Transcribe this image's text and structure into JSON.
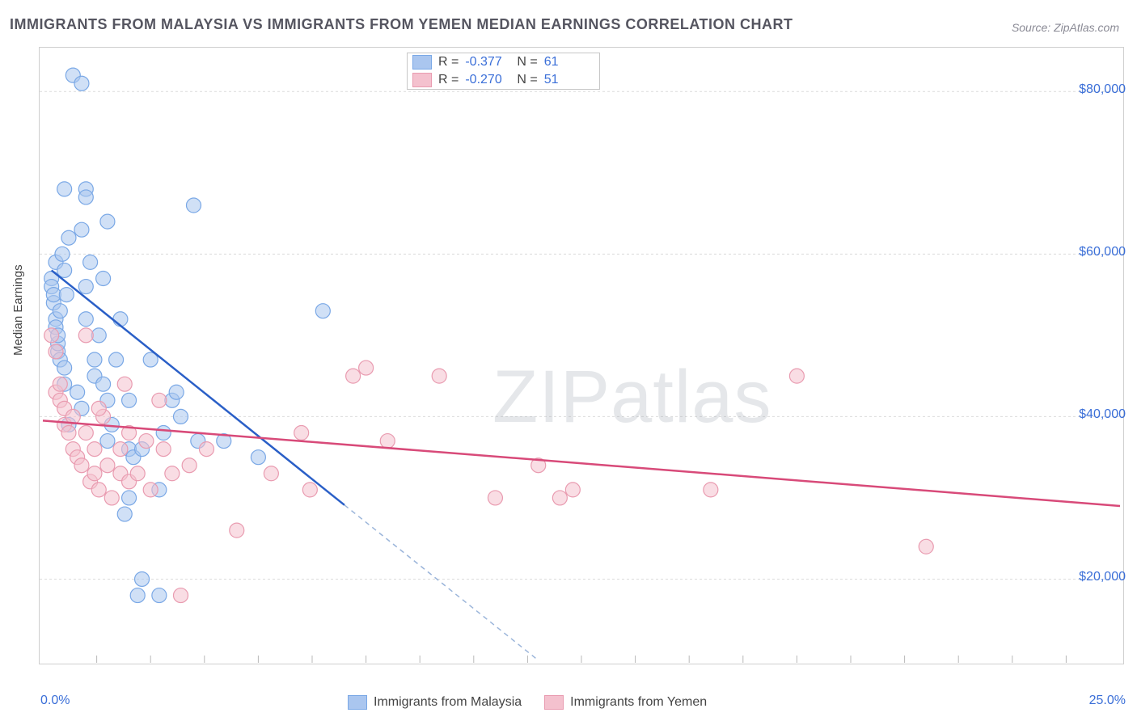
{
  "title": "IMMIGRANTS FROM MALAYSIA VS IMMIGRANTS FROM YEMEN MEDIAN EARNINGS CORRELATION CHART",
  "source": "Source: ZipAtlas.com",
  "ylabel": "Median Earnings",
  "watermark": "ZIPatlas",
  "chart": {
    "type": "scatter-with-regression",
    "background_color": "#ffffff",
    "border_color": "#cfcfcf",
    "grid_color": "#dcdcdc",
    "axis_text_color": "#3b6fd8",
    "label_color": "#444444",
    "xlim": [
      0,
      25
    ],
    "ylim": [
      10000,
      85000
    ],
    "yticks": [
      {
        "v": 20000,
        "label": "$20,000"
      },
      {
        "v": 40000,
        "label": "$40,000"
      },
      {
        "v": 60000,
        "label": "$60,000"
      },
      {
        "v": 80000,
        "label": "$80,000"
      }
    ],
    "xtick_left": "0.0%",
    "xtick_right": "25.0%",
    "xticks_minor": [
      1.25,
      2.5,
      3.75,
      5,
      6.25,
      7.5,
      8.75,
      10,
      11.25,
      12.5,
      13.75,
      15,
      16.25,
      17.5,
      18.75,
      20,
      21.25,
      22.5,
      23.75
    ],
    "marker_radius": 9,
    "marker_opacity": 0.55,
    "reg_line_width": 2.5,
    "series": [
      {
        "name": "Immigrants from Malaysia",
        "color": "#7aa8e6",
        "fill": "#aac6ef",
        "line_color": "#2a5fc7",
        "R": "-0.377",
        "N": "61",
        "reg_line": {
          "x1": 0.2,
          "y1": 58000,
          "x2": 11.5,
          "y2": 10000
        },
        "reg_dash": {
          "x1": 0.2,
          "y1": 58000,
          "x2": 11.5,
          "y2": 10000,
          "extend_to_x": 25,
          "extend_from_x": 7.0
        },
        "points": [
          [
            0.2,
            57000
          ],
          [
            0.2,
            56000
          ],
          [
            0.25,
            54000
          ],
          [
            0.25,
            55000
          ],
          [
            0.3,
            59000
          ],
          [
            0.3,
            52000
          ],
          [
            0.3,
            51000
          ],
          [
            0.35,
            48000
          ],
          [
            0.35,
            49000
          ],
          [
            0.35,
            50000
          ],
          [
            0.4,
            53000
          ],
          [
            0.4,
            47000
          ],
          [
            0.45,
            60000
          ],
          [
            0.5,
            68000
          ],
          [
            0.5,
            58000
          ],
          [
            0.5,
            46000
          ],
          [
            0.5,
            44000
          ],
          [
            0.55,
            55000
          ],
          [
            0.6,
            62000
          ],
          [
            0.6,
            39000
          ],
          [
            0.7,
            82000
          ],
          [
            0.9,
            81000
          ],
          [
            0.9,
            63000
          ],
          [
            1.0,
            68000
          ],
          [
            1.0,
            67000
          ],
          [
            1.0,
            56000
          ],
          [
            1.0,
            52000
          ],
          [
            1.1,
            59000
          ],
          [
            1.2,
            45000
          ],
          [
            1.2,
            47000
          ],
          [
            1.3,
            50000
          ],
          [
            1.4,
            44000
          ],
          [
            1.5,
            64000
          ],
          [
            1.5,
            37000
          ],
          [
            1.6,
            39000
          ],
          [
            1.7,
            47000
          ],
          [
            1.8,
            52000
          ],
          [
            1.9,
            28000
          ],
          [
            2.0,
            42000
          ],
          [
            2.0,
            36000
          ],
          [
            2.1,
            35000
          ],
          [
            2.2,
            18000
          ],
          [
            2.3,
            20000
          ],
          [
            2.3,
            36000
          ],
          [
            2.5,
            47000
          ],
          [
            2.7,
            18000
          ],
          [
            2.7,
            31000
          ],
          [
            2.8,
            38000
          ],
          [
            3.0,
            42000
          ],
          [
            3.1,
            43000
          ],
          [
            3.5,
            66000
          ],
          [
            3.6,
            37000
          ],
          [
            2.0,
            30000
          ],
          [
            1.5,
            42000
          ],
          [
            1.4,
            57000
          ],
          [
            0.9,
            41000
          ],
          [
            0.8,
            43000
          ],
          [
            6.5,
            53000
          ],
          [
            4.2,
            37000
          ],
          [
            5.0,
            35000
          ],
          [
            3.2,
            40000
          ]
        ]
      },
      {
        "name": "Immigrants from Yemen",
        "color": "#e99bb0",
        "fill": "#f4c1ce",
        "line_color": "#d84a79",
        "R": "-0.270",
        "N": "51",
        "reg_line": {
          "x1": 0.0,
          "y1": 39500,
          "x2": 25,
          "y2": 29000
        },
        "points": [
          [
            0.2,
            50000
          ],
          [
            0.3,
            48000
          ],
          [
            0.3,
            43000
          ],
          [
            0.4,
            44000
          ],
          [
            0.4,
            42000
          ],
          [
            0.5,
            41000
          ],
          [
            0.5,
            39000
          ],
          [
            0.6,
            38000
          ],
          [
            0.7,
            40000
          ],
          [
            0.7,
            36000
          ],
          [
            0.8,
            35000
          ],
          [
            0.9,
            34000
          ],
          [
            1.0,
            50000
          ],
          [
            1.0,
            38000
          ],
          [
            1.1,
            32000
          ],
          [
            1.2,
            33000
          ],
          [
            1.3,
            31000
          ],
          [
            1.4,
            40000
          ],
          [
            1.5,
            34000
          ],
          [
            1.6,
            30000
          ],
          [
            1.8,
            33000
          ],
          [
            1.8,
            36000
          ],
          [
            2.0,
            32000
          ],
          [
            2.0,
            38000
          ],
          [
            2.2,
            33000
          ],
          [
            2.4,
            37000
          ],
          [
            2.5,
            31000
          ],
          [
            2.7,
            42000
          ],
          [
            2.8,
            36000
          ],
          [
            3.0,
            33000
          ],
          [
            3.2,
            18000
          ],
          [
            3.4,
            34000
          ],
          [
            3.8,
            36000
          ],
          [
            4.5,
            26000
          ],
          [
            5.3,
            33000
          ],
          [
            6.0,
            38000
          ],
          [
            6.2,
            31000
          ],
          [
            7.2,
            45000
          ],
          [
            7.5,
            46000
          ],
          [
            8.0,
            37000
          ],
          [
            9.2,
            45000
          ],
          [
            10.5,
            30000
          ],
          [
            11.5,
            34000
          ],
          [
            12.0,
            30000
          ],
          [
            12.3,
            31000
          ],
          [
            15.5,
            31000
          ],
          [
            17.5,
            45000
          ],
          [
            20.5,
            24000
          ],
          [
            1.9,
            44000
          ],
          [
            1.2,
            36000
          ],
          [
            1.3,
            41000
          ]
        ]
      }
    ]
  }
}
